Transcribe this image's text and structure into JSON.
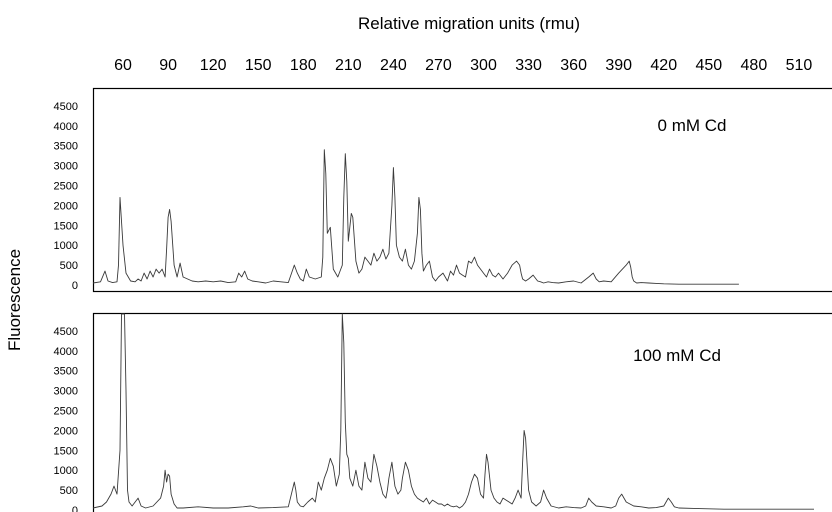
{
  "chart_data": {
    "type": "line",
    "xlabel": "Relative migration units (rmu)",
    "ylabel": "Fluorescence",
    "x_ticks": [
      60,
      90,
      120,
      150,
      180,
      210,
      240,
      270,
      300,
      330,
      360,
      390,
      420,
      450,
      480,
      510
    ],
    "y_ticks": [
      0,
      500,
      1000,
      1500,
      2000,
      2500,
      3000,
      3500,
      4000,
      4500
    ],
    "xlim": [
      40,
      520
    ],
    "ylim": [
      0,
      5000
    ],
    "grid": false,
    "panels": [
      {
        "title": "0 mM Cd",
        "series": [
          {
            "x": [
              40,
              45,
              48,
              50,
              53,
              56,
              57,
              58,
              60,
              62,
              65,
              68,
              70,
              72,
              74,
              76,
              78,
              80,
              82,
              84,
              86,
              88,
              89,
              90,
              91,
              92,
              94,
              96,
              98,
              100,
              103,
              106,
              110,
              115,
              120,
              125,
              130,
              135,
              137,
              139,
              141,
              143,
              146,
              150,
              155,
              160,
              165,
              170,
              174,
              176,
              178,
              180,
              182,
              184,
              188,
              192,
              193,
              194,
              195,
              196,
              198,
              200,
              203,
              206,
              207,
              208,
              209,
              210,
              212,
              213,
              215,
              217,
              219,
              221,
              223,
              225,
              227,
              229,
              231,
              233,
              235,
              237,
              239,
              240,
              241,
              242,
              244,
              246,
              248,
              250,
              252,
              254,
              256,
              257,
              258,
              259,
              260,
              262,
              264,
              266,
              268,
              270,
              273,
              276,
              278,
              280,
              282,
              284,
              286,
              288,
              290,
              292,
              294,
              296,
              298,
              300,
              302,
              304,
              306,
              308,
              310,
              313,
              316,
              319,
              322,
              324,
              325,
              326,
              328,
              330,
              333,
              336,
              338,
              340,
              343,
              346,
              350,
              355,
              360,
              365,
              370,
              373,
              375,
              377,
              380,
              385,
              390,
              395,
              397,
              398,
              399,
              400,
              402,
              405,
              410,
              415,
              420,
              430,
              440,
              450,
              460,
              470
            ],
            "y": [
              50,
              80,
              350,
              100,
              60,
              80,
              500,
              2200,
              1000,
              300,
              100,
              80,
              150,
              100,
              300,
              150,
              350,
              200,
              400,
              300,
              400,
              200,
              900,
              1700,
              1900,
              1600,
              500,
              200,
              550,
              200,
              150,
              100,
              80,
              100,
              80,
              100,
              60,
              80,
              300,
              200,
              350,
              150,
              100,
              80,
              50,
              100,
              80,
              60,
              500,
              300,
              150,
              100,
              400,
              200,
              150,
              200,
              700,
              3400,
              2800,
              1300,
              1450,
              400,
              200,
              500,
              2200,
              3300,
              2600,
              1100,
              1800,
              1700,
              600,
              300,
              400,
              700,
              600,
              500,
              800,
              600,
              700,
              900,
              650,
              800,
              2000,
              2950,
              2200,
              1000,
              700,
              600,
              900,
              500,
              400,
              600,
              1300,
              2200,
              1900,
              800,
              350,
              500,
              600,
              200,
              100,
              200,
              300,
              100,
              350,
              250,
              500,
              300,
              250,
              200,
              600,
              550,
              700,
              500,
              400,
              300,
              200,
              400,
              250,
              200,
              300,
              150,
              300,
              500,
              600,
              500,
              300,
              150,
              100,
              150,
              250,
              100,
              80,
              50,
              80,
              60,
              50,
              80,
              100,
              50,
              200,
              300,
              150,
              80,
              100,
              80,
              300,
              500,
              600,
              450,
              200,
              100,
              50,
              60,
              50,
              40,
              30,
              20,
              20,
              20,
              20,
              20
            ]
          }
        ]
      },
      {
        "title": "100 mM Cd",
        "series": [
          {
            "x": [
              40,
              46,
              49,
              52,
              54,
              56,
              58,
              59,
              60,
              61,
              62,
              63,
              64,
              66,
              70,
              72,
              75,
              80,
              85,
              87,
              88,
              89,
              90,
              91,
              92,
              94,
              96,
              100,
              110,
              120,
              130,
              140,
              145,
              150,
              160,
              170,
              174,
              175,
              176,
              178,
              180,
              183,
              186,
              188,
              190,
              192,
              194,
              196,
              198,
              200,
              202,
              204,
              205,
              206,
              207,
              208,
              209,
              210,
              211,
              213,
              215,
              217,
              219,
              221,
              223,
              225,
              227,
              229,
              231,
              233,
              235,
              236,
              237,
              239,
              241,
              243,
              245,
              246,
              248,
              250,
              252,
              254,
              256,
              258,
              260,
              262,
              264,
              266,
              268,
              270,
              272,
              274,
              276,
              278,
              280,
              282,
              284,
              286,
              288,
              290,
              292,
              294,
              296,
              298,
              300,
              301,
              302,
              303,
              305,
              307,
              309,
              311,
              313,
              315,
              317,
              319,
              321,
              323,
              325,
              326,
              327,
              328,
              330,
              332,
              335,
              338,
              340,
              342,
              345,
              350,
              355,
              360,
              365,
              368,
              370,
              372,
              375,
              380,
              385,
              388,
              390,
              392,
              395,
              400,
              405,
              410,
              415,
              420,
              423,
              425,
              427,
              430,
              440,
              450,
              460,
              470,
              480,
              490,
              500,
              510,
              520
            ],
            "y": [
              50,
              100,
              200,
              400,
              600,
              400,
              1500,
              5000,
              5000,
              5000,
              3000,
              500,
              200,
              100,
              300,
              100,
              50,
              100,
              300,
              600,
              1000,
              700,
              900,
              850,
              400,
              150,
              50,
              50,
              80,
              50,
              50,
              80,
              100,
              50,
              60,
              80,
              700,
              500,
              200,
              100,
              80,
              200,
              300,
              200,
              700,
              500,
              800,
              1000,
              1300,
              1100,
              600,
              900,
              2000,
              5000,
              4200,
              2200,
              1400,
              1300,
              800,
              600,
              1000,
              600,
              500,
              1200,
              800,
              700,
              1400,
              1100,
              700,
              400,
              300,
              500,
              800,
              1200,
              600,
              400,
              500,
              800,
              1200,
              1000,
              600,
              400,
              300,
              250,
              200,
              300,
              150,
              250,
              200,
              150,
              150,
              100,
              150,
              100,
              80,
              100,
              50,
              100,
              200,
              400,
              700,
              900,
              800,
              400,
              300,
              900,
              1400,
              1200,
              500,
              300,
              200,
              150,
              300,
              250,
              200,
              150,
              300,
              500,
              300,
              1200,
              2000,
              1800,
              500,
              200,
              100,
              200,
              500,
              300,
              100,
              50,
              80,
              60,
              50,
              100,
              300,
              200,
              100,
              80,
              50,
              100,
              300,
              400,
              200,
              100,
              80,
              50,
              60,
              100,
              300,
              200,
              80,
              50,
              40,
              30,
              20,
              20,
              20,
              20,
              20,
              20,
              20
            ]
          }
        ]
      }
    ]
  }
}
